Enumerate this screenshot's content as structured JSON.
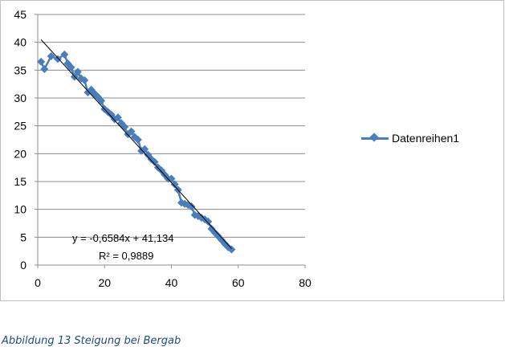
{
  "chart_data": {
    "type": "scatter",
    "xlim": [
      0,
      80
    ],
    "ylim": [
      0,
      45
    ],
    "x_ticks": [
      0,
      20,
      40,
      60,
      80
    ],
    "y_ticks": [
      0,
      5,
      10,
      15,
      20,
      25,
      30,
      35,
      40,
      45
    ],
    "grid": "horizontal",
    "legend_position": "right",
    "series": [
      {
        "name": "Datenreihen1",
        "color": "#4a7ebb",
        "marker": "diamond",
        "x": [
          1,
          2,
          4,
          6,
          8,
          9,
          10,
          11,
          12,
          13,
          14,
          15,
          16,
          17,
          18,
          19,
          20,
          21,
          22,
          23,
          24,
          25,
          26,
          27,
          28,
          29,
          30,
          31,
          32,
          33,
          34,
          35,
          36,
          37,
          38,
          39,
          40,
          41,
          42,
          43,
          44,
          45,
          46,
          47,
          48,
          49,
          50,
          51,
          52,
          53,
          54,
          55,
          56,
          57,
          58
        ],
        "y": [
          36.5,
          35.2,
          37.5,
          37,
          37.8,
          36.2,
          35.5,
          33.8,
          34.7,
          33.5,
          33.2,
          31,
          31.5,
          30.8,
          30.2,
          29.5,
          28,
          27.5,
          27,
          26.2,
          26.5,
          25.5,
          24.8,
          23.5,
          24,
          23,
          22.5,
          20.5,
          20.8,
          19.8,
          19,
          18.5,
          17.5,
          17,
          16.2,
          15.5,
          15.5,
          14.5,
          13.5,
          11.2,
          11,
          10.8,
          10.5,
          9,
          8.8,
          8.5,
          8.2,
          7.8,
          6.5,
          5.8,
          5.2,
          4.5,
          3.8,
          3.2,
          2.8
        ]
      }
    ],
    "trendline": {
      "type": "linear",
      "slope": -0.6584,
      "intercept": 41.134,
      "x_range": [
        1,
        58
      ],
      "color": "#000000"
    },
    "trendline_equation": "y = -0,6584x + 41,134",
    "trendline_r2": "R² = 0,9889"
  },
  "caption": "Abbildung 13 Steigung bei Bergab"
}
